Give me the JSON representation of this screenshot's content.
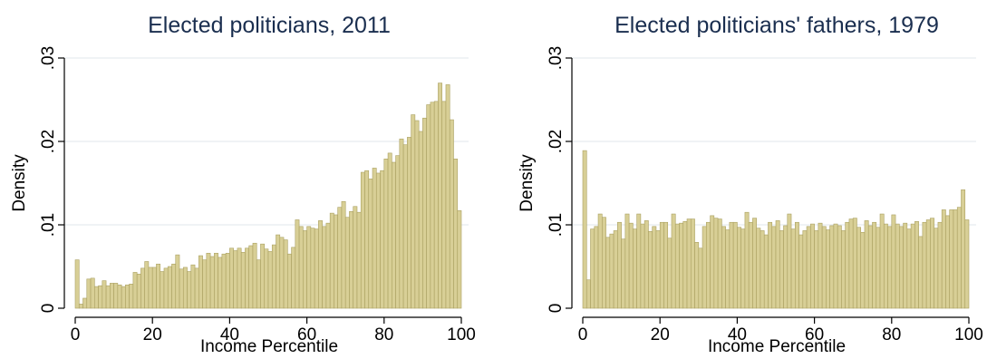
{
  "chart_data": [
    {
      "type": "bar",
      "title": "Elected politicians, 2011",
      "xlabel": "Income Percentile",
      "ylabel": "Density",
      "xlim": [
        0,
        100
      ],
      "ylim": [
        0,
        0.03
      ],
      "x_ticks": [
        0,
        20,
        40,
        60,
        80,
        100
      ],
      "x_tick_labels": [
        "0",
        "20",
        "40",
        "60",
        "80",
        "100"
      ],
      "y_ticks": [
        0,
        0.01,
        0.02,
        0.03
      ],
      "y_tick_labels": [
        "0",
        ".01",
        ".02",
        ".03"
      ],
      "grid": true,
      "bar_color": "#d8cf96",
      "bar_edge_color": "#aaa060",
      "x": [
        1,
        2,
        3,
        4,
        5,
        6,
        7,
        8,
        9,
        10,
        11,
        12,
        13,
        14,
        15,
        16,
        17,
        18,
        19,
        20,
        21,
        22,
        23,
        24,
        25,
        26,
        27,
        28,
        29,
        30,
        31,
        32,
        33,
        34,
        35,
        36,
        37,
        38,
        39,
        40,
        41,
        42,
        43,
        44,
        45,
        46,
        47,
        48,
        49,
        50,
        51,
        52,
        53,
        54,
        55,
        56,
        57,
        58,
        59,
        60,
        61,
        62,
        63,
        64,
        65,
        66,
        67,
        68,
        69,
        70,
        71,
        72,
        73,
        74,
        75,
        76,
        77,
        78,
        79,
        80,
        81,
        82,
        83,
        84,
        85,
        86,
        87,
        88,
        89,
        90,
        91,
        92,
        93,
        94,
        95,
        96,
        97,
        98,
        99,
        100
      ],
      "values": [
        0.0058,
        0.0005,
        0.0012,
        0.0035,
        0.0036,
        0.0026,
        0.0027,
        0.0033,
        0.0027,
        0.003,
        0.003,
        0.0028,
        0.0026,
        0.0028,
        0.0029,
        0.0043,
        0.0041,
        0.0048,
        0.0056,
        0.0049,
        0.0049,
        0.0053,
        0.0044,
        0.0048,
        0.005,
        0.0053,
        0.0064,
        0.0047,
        0.0049,
        0.0044,
        0.0052,
        0.0048,
        0.0063,
        0.0058,
        0.0066,
        0.0062,
        0.0066,
        0.0061,
        0.0065,
        0.0066,
        0.0072,
        0.0069,
        0.0072,
        0.0067,
        0.0072,
        0.0075,
        0.0078,
        0.0058,
        0.0077,
        0.0071,
        0.0068,
        0.0076,
        0.0088,
        0.0085,
        0.0082,
        0.0065,
        0.0073,
        0.0106,
        0.0098,
        0.0093,
        0.0098,
        0.0096,
        0.0095,
        0.0105,
        0.0098,
        0.0102,
        0.0114,
        0.0112,
        0.0121,
        0.0128,
        0.0109,
        0.0116,
        0.0122,
        0.0115,
        0.0163,
        0.0165,
        0.0155,
        0.0168,
        0.0162,
        0.0165,
        0.0179,
        0.0186,
        0.0175,
        0.0183,
        0.0203,
        0.0196,
        0.0205,
        0.0232,
        0.0225,
        0.0212,
        0.0228,
        0.0244,
        0.0247,
        0.0248,
        0.027,
        0.0248,
        0.0268,
        0.0226,
        0.0179,
        0.0117
      ]
    },
    {
      "type": "bar",
      "title": "Elected politicians' fathers, 1979",
      "xlabel": "Income Percentile",
      "ylabel": "Density",
      "xlim": [
        0,
        100
      ],
      "ylim": [
        0,
        0.03
      ],
      "x_ticks": [
        0,
        20,
        40,
        60,
        80,
        100
      ],
      "x_tick_labels": [
        "0",
        "20",
        "40",
        "60",
        "80",
        "100"
      ],
      "y_ticks": [
        0,
        0.01,
        0.02,
        0.03
      ],
      "y_tick_labels": [
        "0",
        ".01",
        ".02",
        ".03"
      ],
      "grid": true,
      "bar_color": "#d8cf96",
      "bar_edge_color": "#aaa060",
      "x": [
        1,
        2,
        3,
        4,
        5,
        6,
        7,
        8,
        9,
        10,
        11,
        12,
        13,
        14,
        15,
        16,
        17,
        18,
        19,
        20,
        21,
        22,
        23,
        24,
        25,
        26,
        27,
        28,
        29,
        30,
        31,
        32,
        33,
        34,
        35,
        36,
        37,
        38,
        39,
        40,
        41,
        42,
        43,
        44,
        45,
        46,
        47,
        48,
        49,
        50,
        51,
        52,
        53,
        54,
        55,
        56,
        57,
        58,
        59,
        60,
        61,
        62,
        63,
        64,
        65,
        66,
        67,
        68,
        69,
        70,
        71,
        72,
        73,
        74,
        75,
        76,
        77,
        78,
        79,
        80,
        81,
        82,
        83,
        84,
        85,
        86,
        87,
        88,
        89,
        90,
        91,
        92,
        93,
        94,
        95,
        96,
        97,
        98,
        99,
        100
      ],
      "values": [
        0.0189,
        0.0034,
        0.0095,
        0.0098,
        0.0113,
        0.0109,
        0.0085,
        0.0089,
        0.0093,
        0.0103,
        0.0083,
        0.0113,
        0.0102,
        0.0095,
        0.0113,
        0.0101,
        0.0105,
        0.0092,
        0.0098,
        0.0093,
        0.0103,
        0.0103,
        0.0084,
        0.0113,
        0.0101,
        0.0102,
        0.0104,
        0.0107,
        0.0107,
        0.0079,
        0.0072,
        0.0098,
        0.0103,
        0.0111,
        0.0108,
        0.0107,
        0.0098,
        0.0094,
        0.0103,
        0.0103,
        0.0097,
        0.0095,
        0.0115,
        0.0103,
        0.0108,
        0.0096,
        0.0093,
        0.0088,
        0.0103,
        0.0098,
        0.0105,
        0.0093,
        0.0099,
        0.0113,
        0.0095,
        0.0103,
        0.0088,
        0.0093,
        0.0098,
        0.0101,
        0.0093,
        0.0102,
        0.0098,
        0.0094,
        0.0099,
        0.0101,
        0.0099,
        0.0093,
        0.0103,
        0.0107,
        0.0108,
        0.0097,
        0.0091,
        0.0105,
        0.0099,
        0.0103,
        0.0097,
        0.0113,
        0.0101,
        0.0098,
        0.0112,
        0.0101,
        0.0098,
        0.0102,
        0.0095,
        0.0101,
        0.0104,
        0.0086,
        0.0103,
        0.0106,
        0.0108,
        0.0096,
        0.0103,
        0.0118,
        0.0111,
        0.0118,
        0.0118,
        0.0121,
        0.0142,
        0.0106
      ]
    }
  ]
}
